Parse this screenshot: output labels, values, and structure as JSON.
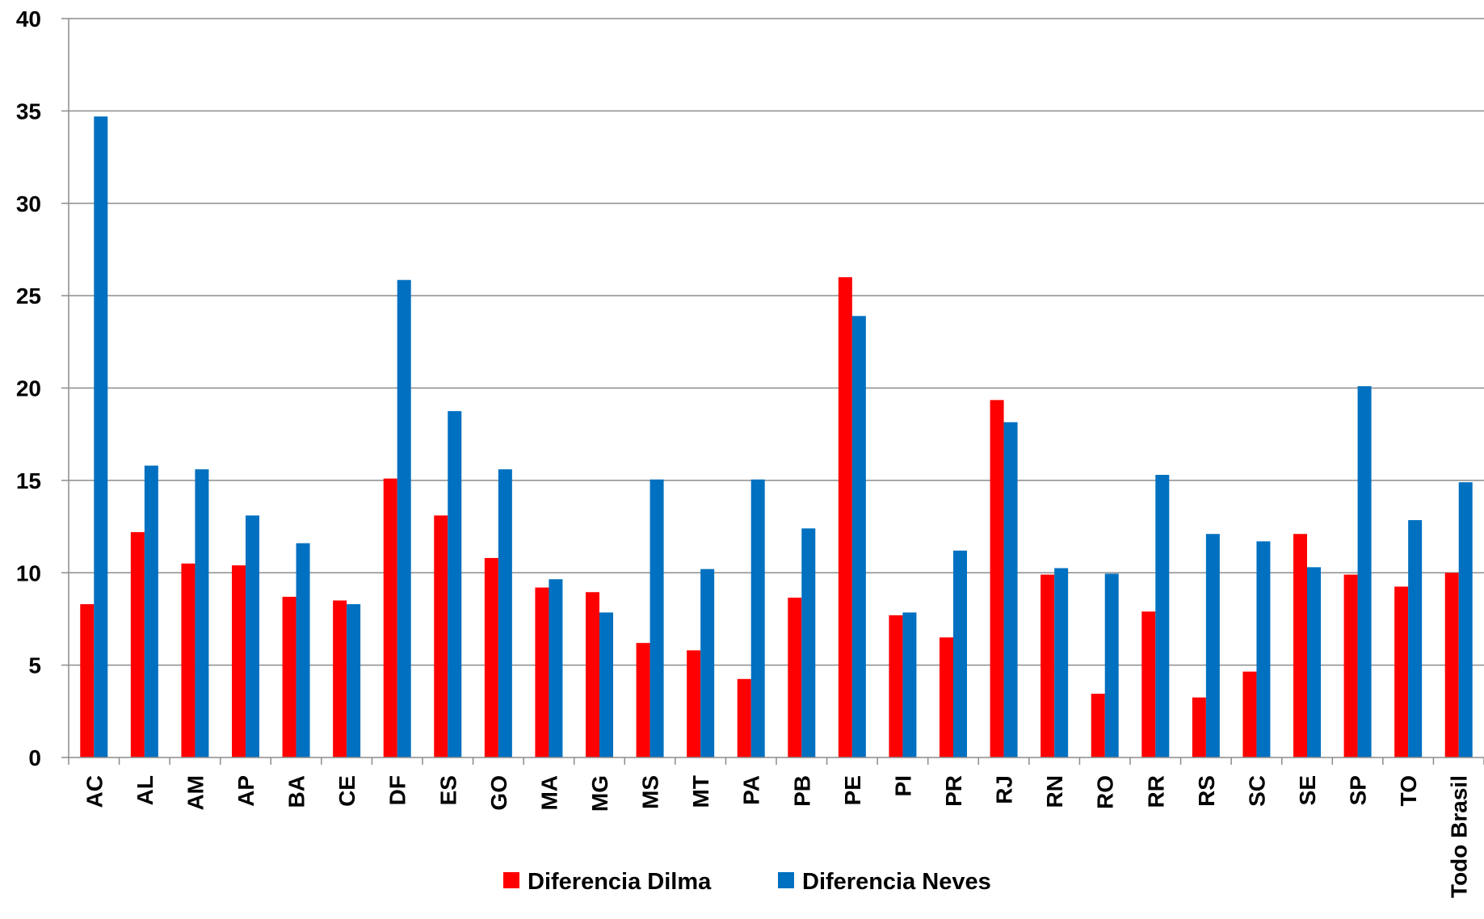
{
  "chart_data": {
    "type": "bar",
    "title": "",
    "xlabel": "",
    "ylabel": "",
    "ylim": [
      0,
      40
    ],
    "yticks": [
      "0",
      "5",
      "10",
      "15",
      "20",
      "25",
      "30",
      "35",
      "40"
    ],
    "grid": true,
    "legend_position": "bottom",
    "categories": [
      "AC",
      "AL",
      "AM",
      "AP",
      "BA",
      "CE",
      "DF",
      "ES",
      "GO",
      "MA",
      "MG",
      "MS",
      "MT",
      "PA",
      "PB",
      "PE",
      "PI",
      "PR",
      "RJ",
      "RN",
      "RO",
      "RR",
      "RS",
      "SC",
      "SE",
      "SP",
      "TO",
      "Todo Brasil"
    ],
    "series": [
      {
        "name": "Diferencia Dilma",
        "color": "#ff0000",
        "values": [
          8.3,
          12.2,
          10.5,
          10.4,
          8.7,
          8.5,
          15.1,
          13.1,
          10.8,
          9.2,
          8.95,
          6.2,
          5.8,
          4.25,
          8.65,
          26.0,
          7.7,
          6.5,
          19.35,
          9.9,
          3.45,
          7.9,
          3.25,
          4.65,
          12.1,
          9.9,
          9.25,
          10.0
        ]
      },
      {
        "name": "Diferencia Neves",
        "color": "#0070c0",
        "values": [
          34.7,
          15.8,
          15.6,
          13.1,
          11.6,
          8.3,
          25.85,
          18.75,
          15.6,
          9.65,
          7.85,
          15.05,
          10.2,
          15.05,
          12.4,
          23.9,
          7.85,
          11.2,
          18.15,
          10.25,
          9.95,
          15.3,
          12.1,
          11.7,
          10.3,
          20.1,
          12.85,
          14.9
        ]
      }
    ]
  }
}
